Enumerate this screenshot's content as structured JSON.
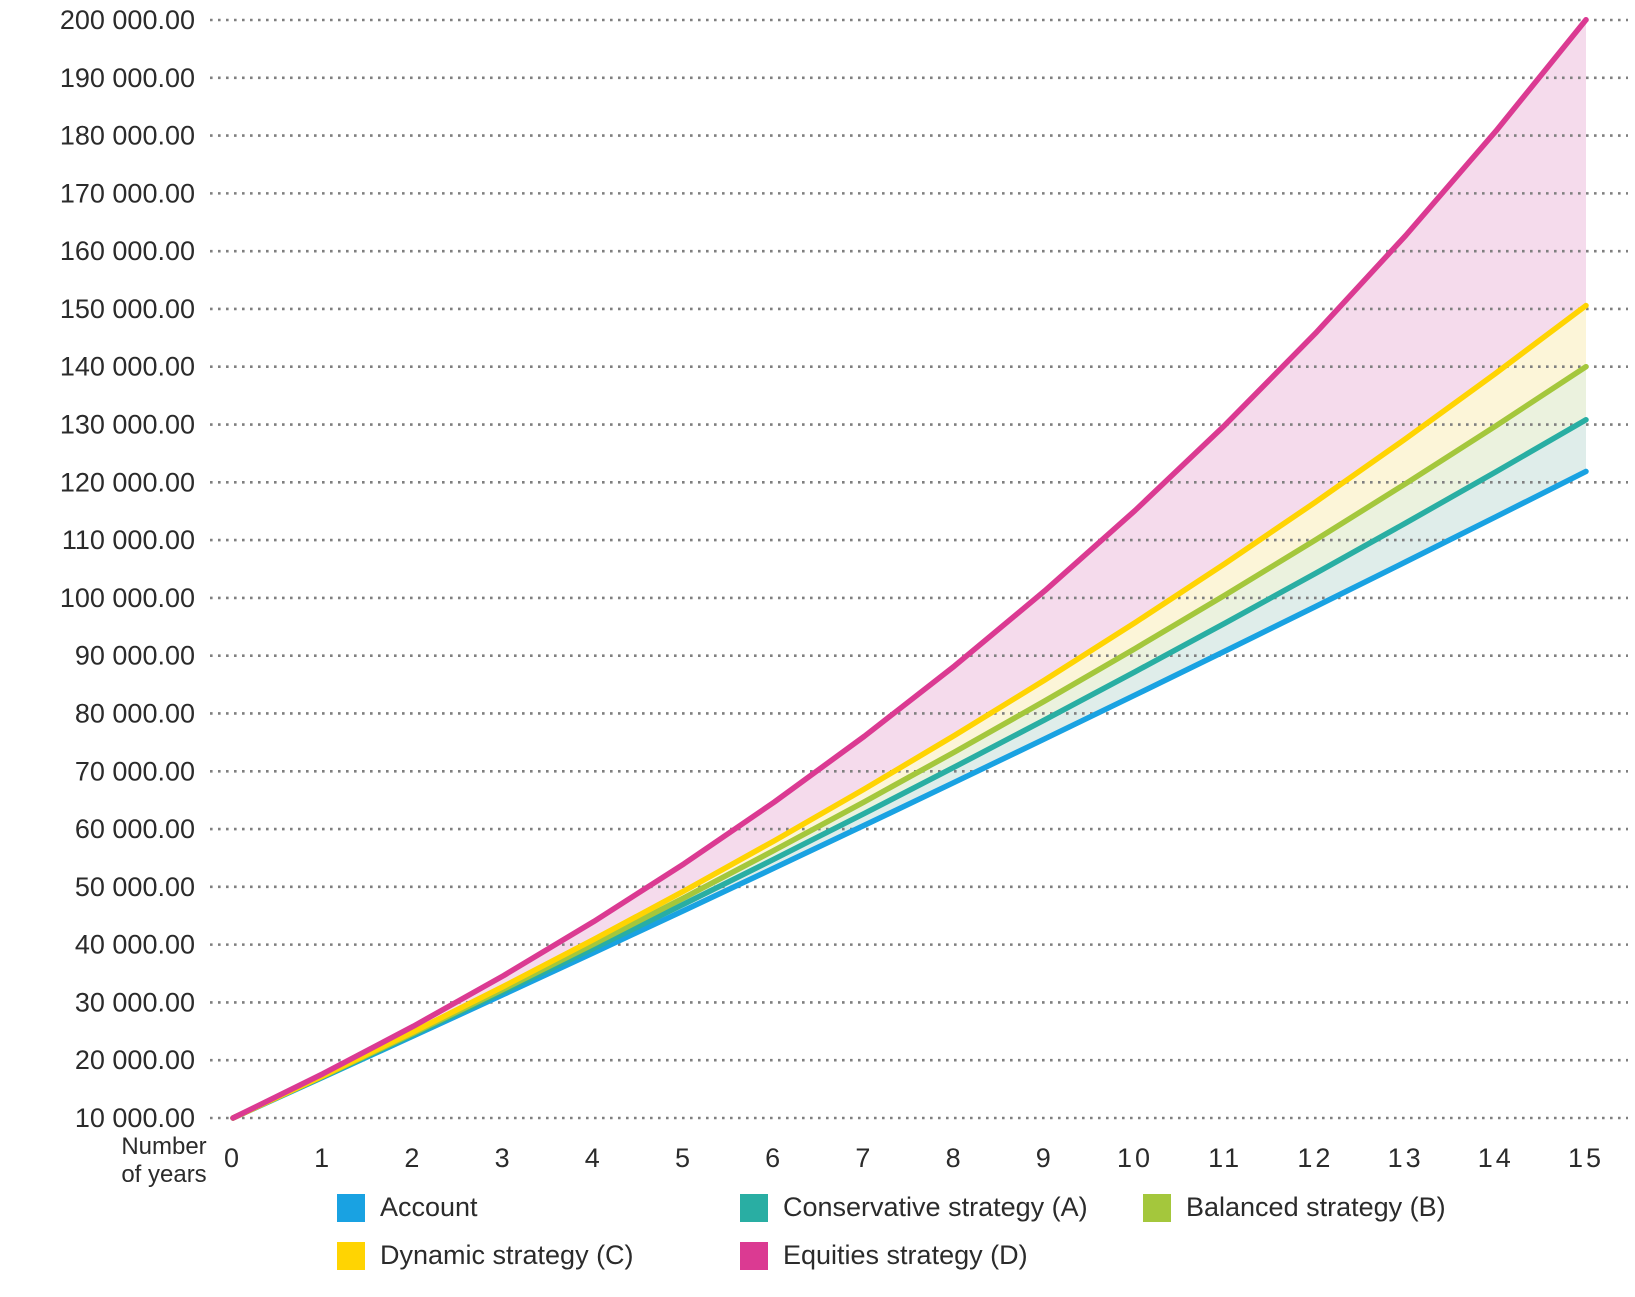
{
  "chart_data": {
    "type": "line",
    "title": "",
    "xlabel": "Number of years",
    "ylabel": "",
    "x": [
      0,
      1,
      2,
      3,
      4,
      5,
      6,
      7,
      8,
      9,
      10,
      11,
      12,
      13,
      14,
      15
    ],
    "x_tick_labels": [
      "0",
      "1",
      "2",
      "3",
      "4",
      "5",
      "6",
      "7",
      "8",
      "9",
      "10",
      "11",
      "12",
      "13",
      "14",
      "15"
    ],
    "xlim": [
      0,
      15
    ],
    "ylim": [
      10000,
      200000
    ],
    "grid": "horizontal dotted gridlines every 10 000",
    "legend_position": "bottom",
    "y_axis": {
      "ticks": [
        {
          "value": 200000,
          "label": "200 000.00"
        },
        {
          "value": 190000,
          "label": "190 000.00"
        },
        {
          "value": 180000,
          "label": "180 000.00"
        },
        {
          "value": 170000,
          "label": "170 000.00"
        },
        {
          "value": 160000,
          "label": "160 000.00"
        },
        {
          "value": 150000,
          "label": "150 000.00"
        },
        {
          "value": 140000,
          "label": "140 000.00"
        },
        {
          "value": 130000,
          "label": "130 000.00"
        },
        {
          "value": 120000,
          "label": "120 000.00"
        },
        {
          "value": 110000,
          "label": "110 000.00"
        },
        {
          "value": 100000,
          "label": "100 000.00"
        },
        {
          "value": 90000,
          "label": "90 000.00"
        },
        {
          "value": 80000,
          "label": "80 000.00"
        },
        {
          "value": 70000,
          "label": "70 000.00"
        },
        {
          "value": 60000,
          "label": "60 000.00"
        },
        {
          "value": 50000,
          "label": "50 000.00"
        },
        {
          "value": 40000,
          "label": "40 000.00"
        },
        {
          "value": 30000,
          "label": "30 000.00"
        },
        {
          "value": 20000,
          "label": "20 000.00"
        },
        {
          "value": 10000,
          "label": "10 000.00"
        }
      ]
    },
    "series": [
      {
        "name": "Account",
        "color": "#19A2E2",
        "band_fill_to_previous": null,
        "values": [
          10000,
          17075,
          24203,
          31385,
          38620,
          45910,
          53254,
          60653,
          68108,
          75619,
          83186,
          90810,
          98491,
          106230,
          114027,
          121882
        ]
      },
      {
        "name": "Conservative strategy (A)",
        "color": "#29AEA3",
        "band_fill_to_previous": "#DFEDEA",
        "values": [
          10000,
          17165,
          24448,
          31852,
          39377,
          47027,
          54803,
          62707,
          70742,
          78909,
          87211,
          95650,
          104228,
          112948,
          121812,
          130821
        ]
      },
      {
        "name": "Balanced strategy (B)",
        "color": "#A4C73C",
        "band_fill_to_previous": "#EBF2DE",
        "values": [
          10000,
          17250,
          24681,
          32298,
          40106,
          48108,
          56311,
          64719,
          73337,
          82170,
          91225,
          100505,
          110018,
          119768,
          129762,
          140006
        ]
      },
      {
        "name": "Dynamic strategy (C)",
        "color": "#FFD402",
        "band_fill_to_previous": "#FCF5D8",
        "values": [
          10000,
          17340,
          24930,
          32777,
          40892,
          49282,
          57958,
          66928,
          76204,
          85795,
          95712,
          105966,
          116569,
          127532,
          138868,
          150590
        ]
      },
      {
        "name": "Equities strategy (D)",
        "color": "#DB3A92",
        "band_fill_to_previous": "#F5DBEC",
        "values": [
          10000,
          17680,
          25882,
          34642,
          43998,
          53990,
          64661,
          76058,
          88230,
          101229,
          115113,
          129941,
          145777,
          162690,
          180752,
          200044
        ]
      }
    ]
  },
  "text_color": "#2B2B2B",
  "grid_color": "#7F7F7F"
}
